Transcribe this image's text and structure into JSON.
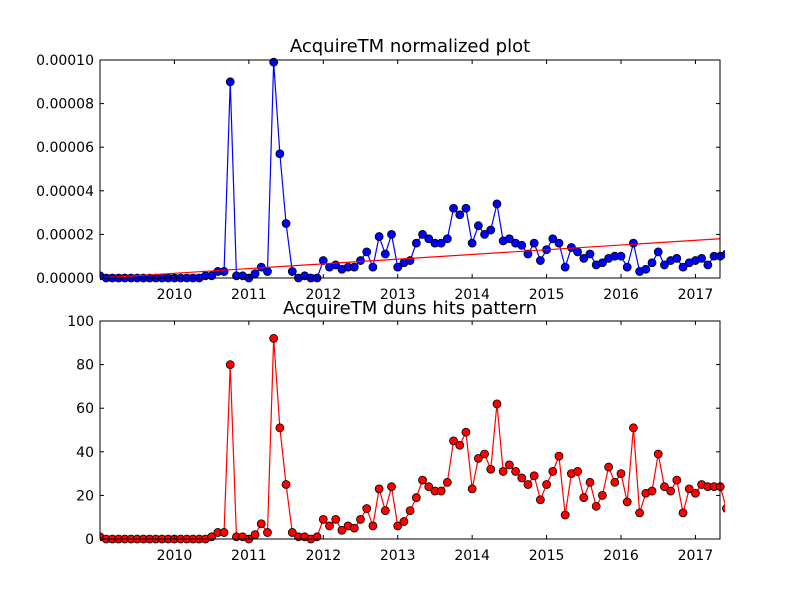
{
  "chart_data": [
    {
      "type": "line",
      "title": "AcquireTM normalized plot",
      "xlabel": "",
      "ylabel": "",
      "xlim": [
        2009.0,
        2017.33
      ],
      "ylim": [
        0,
        0.0001
      ],
      "x_ticks": [
        2010,
        2011,
        2012,
        2013,
        2014,
        2015,
        2016,
        2017
      ],
      "x_tick_labels": [
        "2010",
        "2011",
        "2012",
        "2013",
        "2014",
        "2015",
        "2016",
        "2017"
      ],
      "y_ticks": [
        0,
        2e-05,
        4e-05,
        6e-05,
        8e-05,
        0.0001
      ],
      "y_tick_labels": [
        "0.00000",
        "0.00002",
        "0.00004",
        "0.00006",
        "0.00008",
        "0.00010"
      ],
      "grid": false,
      "x_start": 2009.0,
      "x_step_months": 1,
      "series": [
        {
          "color": "#0000ff",
          "marker": "circle",
          "values": [
            1e-06,
            0,
            0,
            0,
            0,
            0,
            0,
            0,
            0,
            0,
            0,
            0,
            0,
            0,
            0,
            0,
            0,
            1e-06,
            1e-06,
            3e-06,
            3e-06,
            9e-05,
            1e-06,
            1e-06,
            0,
            2e-06,
            5e-06,
            3e-06,
            9.9e-05,
            5.7e-05,
            2.5e-05,
            3e-06,
            0,
            1e-06,
            0,
            0,
            8e-06,
            5e-06,
            6e-06,
            4e-06,
            5e-06,
            5e-06,
            8e-06,
            1.2e-05,
            5e-06,
            1.9e-05,
            1.1e-05,
            2e-05,
            5e-06,
            7e-06,
            8e-06,
            1.6e-05,
            2e-05,
            1.8e-05,
            1.6e-05,
            1.6e-05,
            1.8e-05,
            3.2e-05,
            2.9e-05,
            3.2e-05,
            1.6e-05,
            2.4e-05,
            2e-05,
            2.2e-05,
            3.4e-05,
            1.7e-05,
            1.8e-05,
            1.6e-05,
            1.5e-05,
            1.1e-05,
            1.6e-05,
            8e-06,
            1.3e-05,
            1.8e-05,
            1.6e-05,
            5e-06,
            1.4e-05,
            1.2e-05,
            9e-06,
            1.1e-05,
            6e-06,
            7e-06,
            9e-06,
            1e-05,
            1e-05,
            5e-06,
            1.6e-05,
            3e-06,
            4e-06,
            7e-06,
            1.2e-05,
            6e-06,
            8e-06,
            9e-06,
            5e-06,
            7e-06,
            8e-06,
            9e-06,
            6e-06,
            1e-05,
            1e-05,
            1.1e-05
          ]
        },
        {
          "type": "trend-line",
          "color": "#ff0000",
          "x": [
            2009.0,
            2017.33
          ],
          "values": [
            0,
            1.8e-05
          ]
        }
      ]
    },
    {
      "type": "line",
      "title": "AcquireTM duns hits pattern",
      "xlabel": "",
      "ylabel": "",
      "xlim": [
        2009.0,
        2017.33
      ],
      "ylim": [
        0,
        100
      ],
      "x_ticks": [
        2010,
        2011,
        2012,
        2013,
        2014,
        2015,
        2016,
        2017
      ],
      "x_tick_labels": [
        "2010",
        "2011",
        "2012",
        "2013",
        "2014",
        "2015",
        "2016",
        "2017"
      ],
      "y_ticks": [
        0,
        20,
        40,
        60,
        80,
        100
      ],
      "y_tick_labels": [
        "0",
        "20",
        "40",
        "60",
        "80",
        "100"
      ],
      "grid": false,
      "x_start": 2009.0,
      "x_step_months": 1,
      "series": [
        {
          "color": "#ff0000",
          "marker": "circle",
          "values": [
            1,
            0,
            0,
            0,
            0,
            0,
            0,
            0,
            0,
            0,
            0,
            0,
            0,
            0,
            0,
            0,
            0,
            0,
            1,
            3,
            3,
            80,
            1,
            1,
            0,
            2,
            7,
            3,
            92,
            51,
            25,
            3,
            1,
            1,
            0,
            1,
            9,
            6,
            9,
            4,
            6,
            5,
            9,
            14,
            6,
            23,
            13,
            24,
            6,
            8,
            13,
            19,
            27,
            24,
            22,
            22,
            26,
            45,
            43,
            49,
            23,
            37,
            39,
            32,
            62,
            31,
            34,
            31,
            28,
            25,
            29,
            18,
            25,
            31,
            38,
            11,
            30,
            31,
            19,
            26,
            15,
            20,
            33,
            26,
            30,
            17,
            51,
            12,
            21,
            22,
            39,
            24,
            22,
            27,
            12,
            23,
            21,
            25,
            24,
            24,
            24,
            14
          ]
        }
      ]
    }
  ]
}
